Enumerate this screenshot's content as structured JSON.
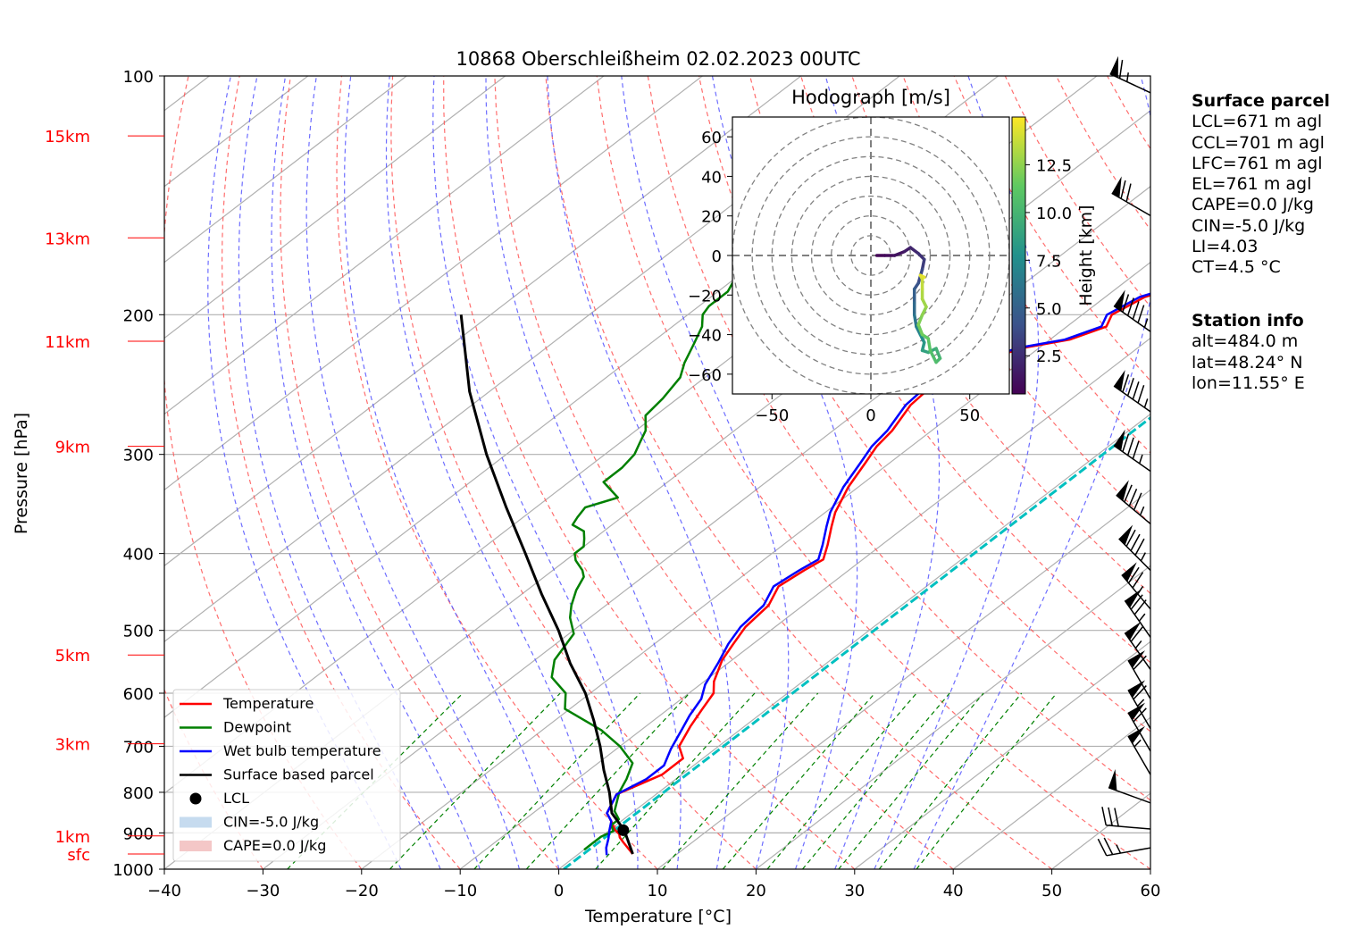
{
  "chart_data": {
    "type": "line",
    "title": "10868 Oberschleißheim 02.02.2023 00UTC",
    "xlabel": "Temperature [°C]",
    "ylabel": "Pressure [hPa]",
    "xlim": [
      -40,
      60
    ],
    "ylim": [
      1000,
      100
    ],
    "y_scale": "log",
    "x_ticks": [
      -40,
      -30,
      -20,
      -10,
      0,
      10,
      20,
      30,
      40,
      50,
      60
    ],
    "x_tick_labels": [
      "−40",
      "−30",
      "−20",
      "−10",
      "0",
      "10",
      "20",
      "30",
      "40",
      "50",
      "60"
    ],
    "y_ticks": [
      100,
      200,
      300,
      400,
      500,
      600,
      700,
      800,
      900,
      1000
    ],
    "y_tick_labels": [
      "100",
      "200",
      "300",
      "400",
      "500",
      "600",
      "700",
      "800",
      "900",
      "1000"
    ],
    "grid": true,
    "skew": "skew-T log-P",
    "height_labels": [
      {
        "label": "15km",
        "p": 119
      },
      {
        "label": "13km",
        "p": 160
      },
      {
        "label": "11km",
        "p": 216
      },
      {
        "label": "9km",
        "p": 293
      },
      {
        "label": "5km",
        "p": 537
      },
      {
        "label": "3km",
        "p": 695
      },
      {
        "label": "1km",
        "p": 908
      },
      {
        "label": "sfc",
        "p": 957
      }
    ],
    "series": [
      {
        "name": "Temperature",
        "color": "#ff0000",
        "points": [
          [
            5.5,
            957
          ],
          [
            3,
            925
          ],
          [
            2,
            912
          ],
          [
            1.5,
            903
          ],
          [
            0.5,
            892
          ],
          [
            -1,
            870
          ],
          [
            -2.5,
            850
          ],
          [
            -4,
            805
          ],
          [
            -2,
            760
          ],
          [
            -2,
            725
          ],
          [
            -4,
            700
          ],
          [
            -5.5,
            660
          ],
          [
            -6.5,
            630
          ],
          [
            -7.5,
            600
          ],
          [
            -9,
            580
          ],
          [
            -11,
            545
          ],
          [
            -12,
            520
          ],
          [
            -13,
            495
          ],
          [
            -13.5,
            465
          ],
          [
            -15,
            440
          ],
          [
            -14.5,
            420
          ],
          [
            -14,
            407
          ],
          [
            -15.5,
            390
          ],
          [
            -17.5,
            370
          ],
          [
            -19,
            355
          ],
          [
            -21,
            330
          ],
          [
            -22.5,
            307
          ],
          [
            -23.5,
            293
          ],
          [
            -24,
            280
          ],
          [
            -25.5,
            260
          ],
          [
            -26,
            240
          ],
          [
            -24,
            228
          ],
          [
            -21.5,
            220
          ],
          [
            -18,
            215
          ],
          [
            -16,
            207
          ],
          [
            -17,
            200
          ],
          [
            -16,
            190
          ],
          [
            -13,
            182
          ],
          [
            -10.5,
            172
          ],
          [
            -8.5,
            162
          ],
          [
            -6,
            153
          ],
          [
            -5,
            146
          ],
          [
            -3,
            138
          ],
          [
            0,
            131
          ],
          [
            0.5,
            126
          ],
          [
            0,
            120
          ],
          [
            0.5,
            114
          ]
        ]
      },
      {
        "name": "Dewpoint",
        "color": "#008000",
        "points": [
          [
            0,
            945
          ],
          [
            0,
            930
          ],
          [
            0,
            910
          ],
          [
            0.5,
            895
          ],
          [
            -0.5,
            880
          ],
          [
            -0.5,
            865
          ],
          [
            -2,
            845
          ],
          [
            -4,
            800
          ],
          [
            -5,
            770
          ],
          [
            -6.5,
            735
          ],
          [
            -10,
            700
          ],
          [
            -14,
            668
          ],
          [
            -20.5,
            628
          ],
          [
            -22.5,
            600
          ],
          [
            -26,
            573
          ],
          [
            -28,
            545
          ],
          [
            -29.5,
            505
          ],
          [
            -32,
            482
          ],
          [
            -33.5,
            465
          ],
          [
            -35,
            445
          ],
          [
            -36,
            428
          ],
          [
            -37,
            420
          ],
          [
            -39,
            408
          ],
          [
            -40,
            400
          ],
          [
            -40,
            392
          ],
          [
            -41,
            383
          ],
          [
            -42,
            375
          ],
          [
            -44,
            368
          ],
          [
            -44.5,
            360
          ],
          [
            -45,
            350
          ],
          [
            -43,
            340
          ],
          [
            -46.5,
            325
          ],
          [
            -46.5,
            312
          ],
          [
            -47,
            300
          ],
          [
            -48,
            290
          ],
          [
            -49,
            280
          ],
          [
            -51,
            268
          ],
          [
            -51.5,
            255
          ],
          [
            -52.5,
            240
          ],
          [
            -54,
            230
          ],
          [
            -55.5,
            218
          ],
          [
            -57,
            207
          ],
          [
            -58.5,
            200
          ],
          [
            -59,
            195
          ],
          [
            -59,
            187
          ],
          [
            -60,
            180
          ],
          [
            -61,
            172
          ],
          [
            -61.5,
            165
          ],
          [
            -63,
            158
          ],
          [
            -64,
            150
          ],
          [
            -64.5,
            143
          ],
          [
            -65.5,
            137
          ],
          [
            -66.5,
            130
          ],
          [
            -67,
            125
          ],
          [
            -68,
            119
          ],
          [
            -68.5,
            115
          ]
        ]
      },
      {
        "name": "Wet bulb temperature",
        "color": "#0000ff",
        "points": [
          [
            3,
            960
          ],
          [
            2,
            940
          ],
          [
            1,
            915
          ],
          [
            0,
            893
          ],
          [
            -1,
            870
          ],
          [
            -2.5,
            850
          ],
          [
            -4,
            805
          ],
          [
            -3,
            770
          ],
          [
            -3,
            740
          ],
          [
            -4.5,
            705
          ],
          [
            -6,
            665
          ],
          [
            -7,
            640
          ],
          [
            -8,
            610
          ],
          [
            -9.5,
            585
          ],
          [
            -11,
            550
          ],
          [
            -12.5,
            520
          ],
          [
            -13.5,
            495
          ],
          [
            -14,
            465
          ],
          [
            -15.5,
            440
          ],
          [
            -15,
            420
          ],
          [
            -14.5,
            407
          ],
          [
            -16,
            390
          ],
          [
            -18,
            370
          ],
          [
            -19.5,
            355
          ],
          [
            -21.5,
            330
          ],
          [
            -23,
            307
          ],
          [
            -24,
            293
          ],
          [
            -24.5,
            280
          ],
          [
            -26,
            260
          ],
          [
            -26.5,
            240
          ],
          [
            -24.5,
            228
          ],
          [
            -22,
            220
          ],
          [
            -18.5,
            215
          ],
          [
            -16.5,
            207
          ],
          [
            -17.5,
            200
          ],
          [
            -16.5,
            190
          ],
          [
            -13.5,
            182
          ],
          [
            -11,
            172
          ],
          [
            -9,
            162
          ],
          [
            -6.5,
            153
          ],
          [
            -5.5,
            146
          ],
          [
            -3.5,
            138
          ],
          [
            -0.5,
            131
          ],
          [
            0,
            126
          ],
          [
            -0.5,
            120
          ],
          [
            0,
            114
          ]
        ]
      },
      {
        "name": "Surface based parcel",
        "color": "#000000",
        "points": [
          [
            5.5,
            957
          ],
          [
            1.5,
            893
          ],
          [
            -2,
            850
          ],
          [
            -5,
            800
          ],
          [
            -8.5,
            750
          ],
          [
            -12,
            700
          ],
          [
            -16,
            650
          ],
          [
            -20.5,
            600
          ],
          [
            -26,
            550
          ],
          [
            -31.5,
            500
          ],
          [
            -38,
            450
          ],
          [
            -45,
            400
          ],
          [
            -53,
            350
          ],
          [
            -62,
            300
          ],
          [
            -72,
            250
          ],
          [
            -83,
            200
          ]
        ]
      }
    ],
    "lcl": {
      "name": "LCL",
      "t": 1.4,
      "p": 893
    },
    "reference_line": {
      "t_surface": 0.5,
      "color": "#00c0c0",
      "p_top": 100
    },
    "legend": {
      "location": "lower-left",
      "entries": [
        {
          "label": "Temperature",
          "kind": "line",
          "color": "#ff0000"
        },
        {
          "label": "Dewpoint",
          "kind": "line",
          "color": "#008000"
        },
        {
          "label": "Wet bulb temperature",
          "kind": "line",
          "color": "#0000ff"
        },
        {
          "label": "Surface based parcel",
          "kind": "line",
          "color": "#000000"
        },
        {
          "label": "LCL",
          "kind": "dot",
          "color": "#000000"
        },
        {
          "label": "CIN=-5.0 J/kg",
          "kind": "patch",
          "color": "#c6dbef"
        },
        {
          "label": "CAPE=0.0 J/kg",
          "kind": "patch",
          "color": "#f4c7c7"
        }
      ]
    },
    "wind_barbs": [
      {
        "p": 105,
        "dir": 295,
        "speed": 65
      },
      {
        "p": 150,
        "dir": 300,
        "speed": 70
      },
      {
        "p": 210,
        "dir": 305,
        "speed": 95
      },
      {
        "p": 265,
        "dir": 305,
        "speed": 95
      },
      {
        "p": 315,
        "dir": 305,
        "speed": 85
      },
      {
        "p": 367,
        "dir": 310,
        "speed": 85
      },
      {
        "p": 420,
        "dir": 315,
        "speed": 85
      },
      {
        "p": 470,
        "dir": 320,
        "speed": 75
      },
      {
        "p": 510,
        "dir": 325,
        "speed": 75
      },
      {
        "p": 560,
        "dir": 325,
        "speed": 65
      },
      {
        "p": 610,
        "dir": 330,
        "speed": 60
      },
      {
        "p": 665,
        "dir": 330,
        "speed": 65
      },
      {
        "p": 710,
        "dir": 330,
        "speed": 60
      },
      {
        "p": 760,
        "dir": 330,
        "speed": 55
      },
      {
        "p": 825,
        "dir": 290,
        "speed": 50
      },
      {
        "p": 890,
        "dir": 275,
        "speed": 30
      },
      {
        "p": 940,
        "dir": 260,
        "speed": 25
      }
    ],
    "hodograph": {
      "title": "Hodograph [m/s]",
      "xlim": [
        -70,
        70
      ],
      "ylim": [
        -70,
        70
      ],
      "x_ticks": [
        -50,
        0,
        50
      ],
      "x_tick_labels": [
        "−50",
        "0",
        "50"
      ],
      "y_ticks": [
        60,
        40,
        20,
        0,
        -20,
        -40,
        -60
      ],
      "y_tick_labels": [
        "60",
        "40",
        "20",
        "0",
        "−20",
        "−40",
        "−60"
      ],
      "rings": [
        10,
        20,
        30,
        40,
        50,
        60,
        70
      ],
      "colorbar": {
        "label": "Height [km]",
        "ticks": [
          2.5,
          5.0,
          7.5,
          10.0,
          12.5
        ],
        "tick_labels": [
          "2.5",
          "5.0",
          "7.5",
          "10.0",
          "12.5"
        ],
        "min": 0.5,
        "max": 15
      },
      "trace": [
        {
          "u": 3,
          "v": 0,
          "h": 0.5
        },
        {
          "u": 7,
          "v": 0,
          "h": 0.8
        },
        {
          "u": 12,
          "v": 0,
          "h": 1.1
        },
        {
          "u": 17,
          "v": 2,
          "h": 1.5
        },
        {
          "u": 20,
          "v": 4,
          "h": 1.9
        },
        {
          "u": 24,
          "v": 1,
          "h": 2.4
        },
        {
          "u": 27,
          "v": -2,
          "h": 2.9
        },
        {
          "u": 26,
          "v": -7,
          "h": 3.4
        },
        {
          "u": 24,
          "v": -14,
          "h": 4.0
        },
        {
          "u": 22,
          "v": -17,
          "h": 4.6
        },
        {
          "u": 22,
          "v": -24,
          "h": 5.2
        },
        {
          "u": 22,
          "v": -30,
          "h": 5.8
        },
        {
          "u": 23,
          "v": -36,
          "h": 6.5
        },
        {
          "u": 25,
          "v": -40,
          "h": 7.2
        },
        {
          "u": 27,
          "v": -44,
          "h": 7.9
        },
        {
          "u": 26,
          "v": -48,
          "h": 8.5
        },
        {
          "u": 29,
          "v": -49,
          "h": 9.0
        },
        {
          "u": 33,
          "v": -47,
          "h": 9.5
        },
        {
          "u": 35,
          "v": -52,
          "h": 10.0
        },
        {
          "u": 33,
          "v": -54,
          "h": 10.4
        },
        {
          "u": 30,
          "v": -48,
          "h": 10.8
        },
        {
          "u": 29,
          "v": -42,
          "h": 11.2
        },
        {
          "u": 26,
          "v": -40,
          "h": 11.6
        },
        {
          "u": 24,
          "v": -35,
          "h": 12.0
        },
        {
          "u": 26,
          "v": -30,
          "h": 12.3
        },
        {
          "u": 28,
          "v": -26,
          "h": 12.7
        },
        {
          "u": 26,
          "v": -22,
          "h": 13.0
        },
        {
          "u": 26,
          "v": -17,
          "h": 13.4
        },
        {
          "u": 26,
          "v": -12,
          "h": 13.8
        },
        {
          "u": 25,
          "v": -10,
          "h": 14.2
        },
        {
          "u": 27,
          "v": -11,
          "h": 14.6
        }
      ]
    }
  },
  "surface_parcel": {
    "title": "Surface parcel",
    "lines": [
      "LCL=671 m agl",
      "CCL=701 m agl",
      "LFC=761 m agl",
      "EL=761 m agl",
      "CAPE=0.0 J/kg",
      "CIN=-5.0 J/kg",
      "LI=4.03",
      "CT=4.5 °C"
    ]
  },
  "station_info": {
    "title": "Station info",
    "lines": [
      "alt=484.0 m",
      "lat=48.24° N",
      "lon=11.55° E"
    ]
  }
}
